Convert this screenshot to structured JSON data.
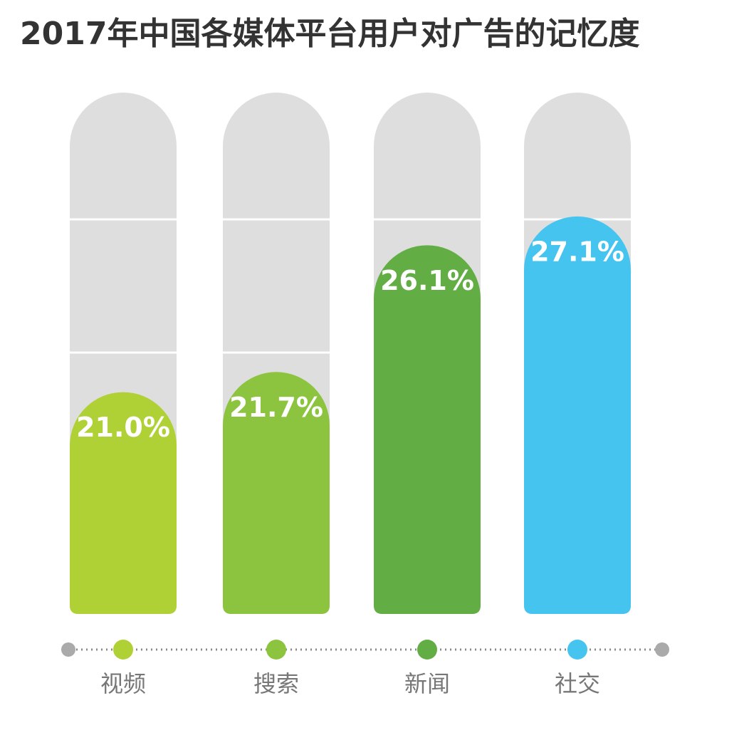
{
  "chart_data": {
    "type": "bar",
    "title": "2017年中国各媒体平台用户对广告的记忆度",
    "categories": [
      "视频",
      "搜索",
      "新闻",
      "社交"
    ],
    "values": [
      21.0,
      21.7,
      26.1,
      27.1
    ],
    "value_labels": [
      "21.0%",
      "21.7%",
      "26.1%",
      "27.1%"
    ],
    "colors": [
      "#b0d136",
      "#8cc43f",
      "#63ad45",
      "#45c4f0"
    ],
    "ylim": [
      13.3,
      31.4
    ]
  }
}
